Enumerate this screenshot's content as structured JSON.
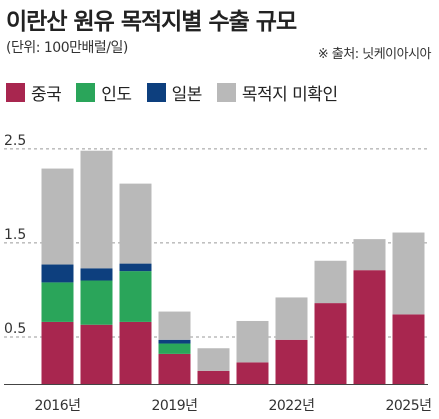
{
  "header": {
    "title": "이란산 원유 목적지별 수출 규모",
    "unit": "(단위: 100만배럴/일)",
    "source": "※ 출처: 닛케이아시아"
  },
  "legend": [
    {
      "label": "중국",
      "color": "#a8264f"
    },
    {
      "label": "인도",
      "color": "#2aa55a"
    },
    {
      "label": "일본",
      "color": "#0d3f7e"
    },
    {
      "label": "목적지 미확인",
      "color": "#b9b9b9"
    }
  ],
  "chart_data": {
    "type": "bar",
    "stacked": true,
    "categories": [
      "2016",
      "2017",
      "2018",
      "2019",
      "2020",
      "2021",
      "2022",
      "2023",
      "2024",
      "2025"
    ],
    "x_tick_labels": [
      {
        "index": 0,
        "label": "2016년"
      },
      {
        "index": 3,
        "label": "2019년"
      },
      {
        "index": 6,
        "label": "2022년"
      },
      {
        "index": 9,
        "label": "2025년"
      }
    ],
    "series": [
      {
        "name": "중국",
        "color": "#a8264f",
        "values": [
          0.66,
          0.63,
          0.66,
          0.32,
          0.14,
          0.23,
          0.47,
          0.86,
          1.21,
          0.74
        ]
      },
      {
        "name": "인도",
        "color": "#2aa55a",
        "values": [
          0.42,
          0.47,
          0.54,
          0.11,
          0,
          0,
          0,
          0,
          0,
          0
        ]
      },
      {
        "name": "일본",
        "color": "#0d3f7e",
        "values": [
          0.19,
          0.13,
          0.08,
          0.04,
          0,
          0,
          0,
          0,
          0,
          0
        ]
      },
      {
        "name": "목적지 미확인",
        "color": "#b9b9b9",
        "values": [
          1.02,
          1.25,
          0.85,
          0.3,
          0.24,
          0.44,
          0.45,
          0.45,
          0.33,
          0.87
        ]
      }
    ],
    "y_ticks": [
      0.5,
      1.5,
      2.5
    ],
    "ylim": [
      0,
      2.7
    ],
    "grid": "horizontal-dashed",
    "legend_position": "top-left"
  }
}
